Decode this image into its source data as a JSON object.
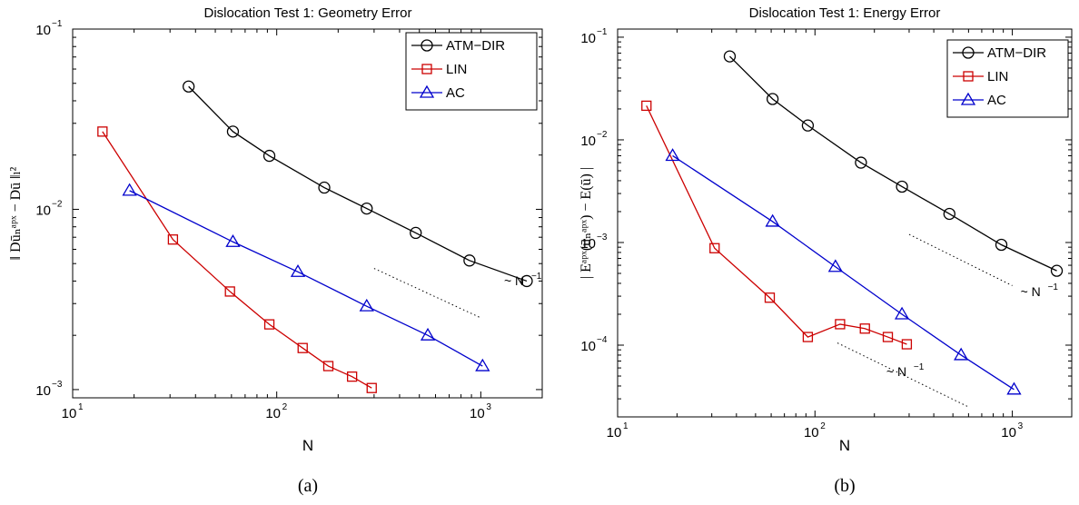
{
  "chart_data": [
    {
      "type": "line",
      "title": "Dislocation Test 1: Geometry Error",
      "xlabel": "N",
      "ylabel": "‖ Dūₙᵃᵖˣ − Dū ‖ₗ²",
      "caption": "(a)",
      "x_scale": "log",
      "y_scale": "log",
      "xlim": [
        10,
        2000
      ],
      "ylim": [
        0.0009,
        0.1
      ],
      "x_ticks": [
        {
          "base": "10",
          "exp": "1",
          "v": 10
        },
        {
          "base": "10",
          "exp": "2",
          "v": 100
        },
        {
          "base": "10",
          "exp": "3",
          "v": 1000
        }
      ],
      "y_ticks": [
        {
          "base": "10",
          "exp": "−3",
          "v": 0.001
        },
        {
          "base": "10",
          "exp": "−2",
          "v": 0.01
        },
        {
          "base": "10",
          "exp": "−1",
          "v": 0.1
        }
      ],
      "legend_position": "top-right",
      "series": [
        {
          "name": "ATM−DIR",
          "color": "#000000",
          "marker": "circle",
          "x": [
            37,
            61,
            92,
            171,
            276,
            480,
            880,
            1680
          ],
          "y": [
            0.048,
            0.027,
            0.0198,
            0.0132,
            0.0101,
            0.0074,
            0.0052,
            0.004
          ]
        },
        {
          "name": "LIN",
          "color": "#cc0000",
          "marker": "square",
          "x": [
            14,
            31,
            59,
            92,
            134,
            179,
            234,
            292
          ],
          "y": [
            0.027,
            0.0068,
            0.0035,
            0.0023,
            0.0017,
            0.00135,
            0.00118,
            0.00102
          ]
        },
        {
          "name": "AC",
          "color": "#0000cc",
          "marker": "triangle",
          "x": [
            19,
            61,
            127,
            276,
            550,
            1020
          ],
          "y": [
            0.0127,
            0.0066,
            0.0045,
            0.0029,
            0.002,
            0.00135
          ]
        }
      ],
      "annotations": [
        {
          "text": "~ N",
          "sup": "−1",
          "x": 1300,
          "y": 0.0038
        },
        {
          "type": "reference-line",
          "x": [
            300,
            1000
          ],
          "y": [
            0.0047,
            0.0025
          ]
        }
      ]
    },
    {
      "type": "line",
      "title": "Dislocation Test 1: Energy Error",
      "xlabel": "N",
      "ylabel": "| Eᵃᵖˣ(ūₙᵃᵖˣ) − E(ū) |",
      "caption": "(b)",
      "x_scale": "log",
      "y_scale": "log",
      "xlim": [
        10,
        2000
      ],
      "ylim": [
        2e-05,
        0.12
      ],
      "x_ticks": [
        {
          "base": "10",
          "exp": "1",
          "v": 10
        },
        {
          "base": "10",
          "exp": "2",
          "v": 100
        },
        {
          "base": "10",
          "exp": "3",
          "v": 1000
        }
      ],
      "y_ticks": [
        {
          "base": "10",
          "exp": "−4",
          "v": 0.0001
        },
        {
          "base": "10",
          "exp": "−3",
          "v": 0.001
        },
        {
          "base": "10",
          "exp": "−2",
          "v": 0.01
        },
        {
          "base": "10",
          "exp": "−1",
          "v": 0.1
        }
      ],
      "legend_position": "top-right",
      "series": [
        {
          "name": "ATM−DIR",
          "color": "#000000",
          "marker": "circle",
          "x": [
            37,
            61,
            92,
            171,
            276,
            480,
            880,
            1680
          ],
          "y": [
            0.065,
            0.025,
            0.0138,
            0.006,
            0.0035,
            0.0019,
            0.00095,
            0.00053
          ]
        },
        {
          "name": "LIN",
          "color": "#cc0000",
          "marker": "square",
          "x": [
            14,
            31,
            59,
            92,
            134,
            179,
            234,
            292
          ],
          "y": [
            0.0215,
            0.00088,
            0.00029,
            0.00012,
            0.00016,
            0.000145,
            0.00012,
            0.000102
          ]
        },
        {
          "name": "AC",
          "color": "#0000cc",
          "marker": "triangle",
          "x": [
            19,
            61,
            127,
            276,
            550,
            1020
          ],
          "y": [
            0.007,
            0.0016,
            0.00058,
            0.0002,
            8e-05,
            3.7e-05
          ]
        }
      ],
      "annotations": [
        {
          "text": "~ N",
          "sup": "−1",
          "x": 1100,
          "y": 0.0003
        },
        {
          "text": "~ N",
          "sup": "−1",
          "x": 230,
          "y": 5e-05
        },
        {
          "type": "reference-line",
          "x": [
            300,
            1000
          ],
          "y": [
            0.0012,
            0.00038
          ]
        },
        {
          "type": "reference-line",
          "x": [
            130,
            600
          ],
          "y": [
            0.000105,
            2.5e-05
          ]
        }
      ]
    }
  ]
}
